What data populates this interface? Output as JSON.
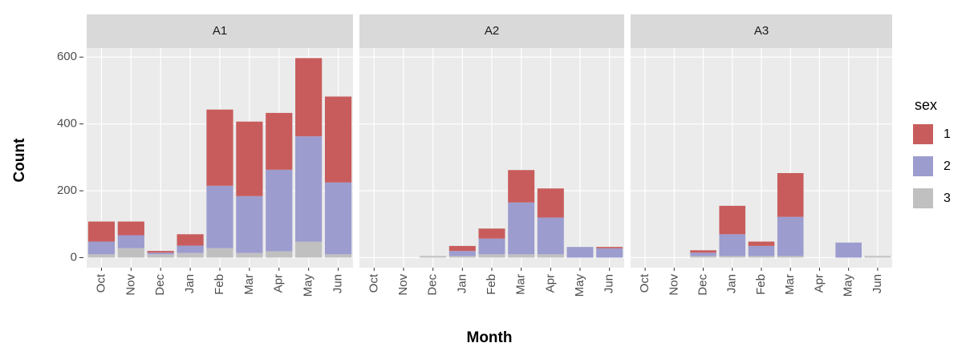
{
  "chart_data": {
    "type": "bar",
    "stacked": true,
    "xlabel": "Month",
    "ylabel": "Count",
    "legend_title": "sex",
    "categories": [
      "Oct",
      "Nov",
      "Dec",
      "Jan",
      "Feb",
      "Mar",
      "Apr",
      "May",
      "Jun"
    ],
    "ylim": [
      -30,
      627
    ],
    "yticks": [
      0,
      200,
      400,
      600
    ],
    "grid": true,
    "series": [
      {
        "name": "1",
        "color": "#c85c5c"
      },
      {
        "name": "2",
        "color": "#9c9ccf"
      },
      {
        "name": "3",
        "color": "#c0c0c0"
      }
    ],
    "panels": [
      {
        "title": "A1",
        "values": [
          [
            60,
            41,
            5,
            34,
            228,
            223,
            170,
            234,
            257
          ],
          [
            38,
            39,
            5,
            22,
            187,
            170,
            244,
            315,
            215
          ],
          [
            10,
            28,
            10,
            14,
            28,
            14,
            19,
            48,
            10
          ]
        ]
      },
      {
        "title": "A2",
        "values": [
          [
            0,
            0,
            0,
            15,
            30,
            97,
            87,
            0,
            4
          ],
          [
            0,
            0,
            0,
            15,
            47,
            155,
            110,
            32,
            28
          ],
          [
            0,
            0,
            5,
            5,
            10,
            10,
            10,
            0,
            0
          ]
        ]
      },
      {
        "title": "A3",
        "values": [
          [
            0,
            0,
            7,
            85,
            13,
            131,
            0,
            0,
            0
          ],
          [
            0,
            0,
            10,
            65,
            30,
            117,
            0,
            45,
            0
          ],
          [
            0,
            0,
            5,
            5,
            5,
            5,
            0,
            0,
            5
          ]
        ]
      }
    ]
  }
}
